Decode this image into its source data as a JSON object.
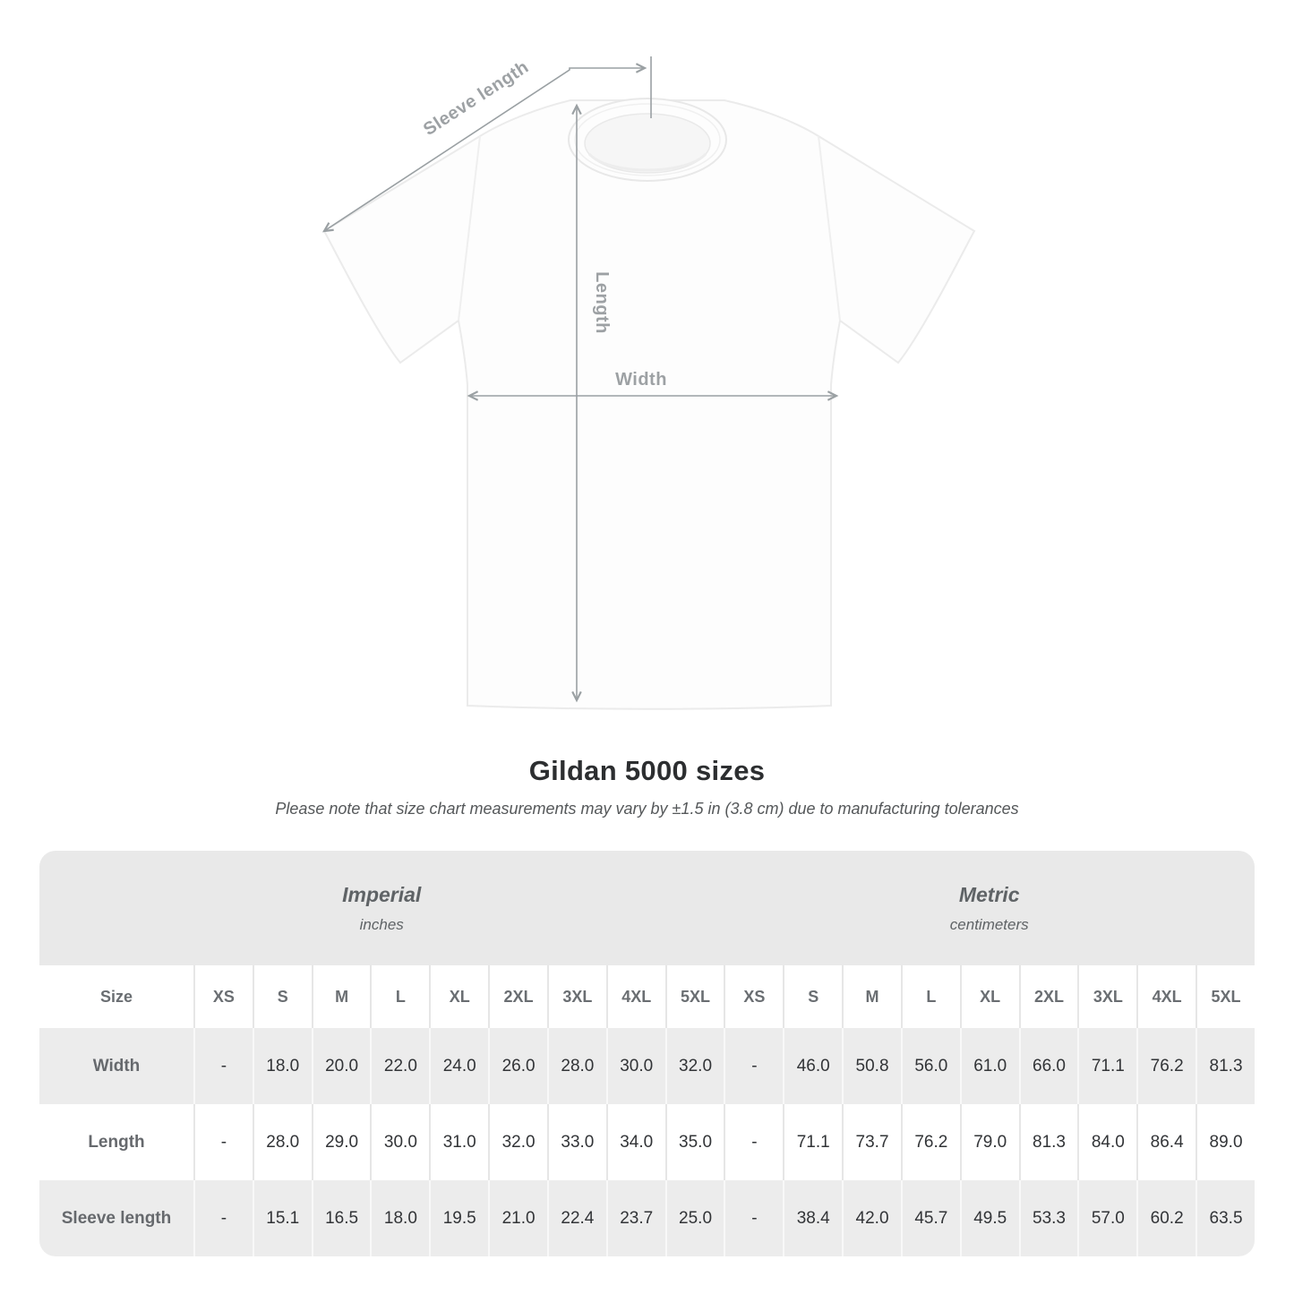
{
  "diagram": {
    "sleeve_length_label": "Sleeve length",
    "length_label": "Length",
    "width_label": "Width"
  },
  "title": "Gildan 5000 sizes",
  "note": "Please note that size chart measurements may vary by ±1.5 in (3.8 cm) due to manufacturing tolerances",
  "table": {
    "size_header": "Size",
    "unit_groups": [
      {
        "label": "Imperial",
        "sublabel": "inches"
      },
      {
        "label": "Metric",
        "sublabel": "centimeters"
      }
    ],
    "sizes": [
      "XS",
      "S",
      "M",
      "L",
      "XL",
      "2XL",
      "3XL",
      "4XL",
      "5XL"
    ],
    "rows": [
      {
        "label": "Width",
        "imperial": [
          "-",
          "18.0",
          "20.0",
          "22.0",
          "24.0",
          "26.0",
          "28.0",
          "30.0",
          "32.0"
        ],
        "metric": [
          "-",
          "46.0",
          "50.8",
          "56.0",
          "61.0",
          "66.0",
          "71.1",
          "76.2",
          "81.3"
        ]
      },
      {
        "label": "Length",
        "imperial": [
          "-",
          "28.0",
          "29.0",
          "30.0",
          "31.0",
          "32.0",
          "33.0",
          "34.0",
          "35.0"
        ],
        "metric": [
          "-",
          "71.1",
          "73.7",
          "76.2",
          "79.0",
          "81.3",
          "84.0",
          "86.4",
          "89.0"
        ]
      },
      {
        "label": "Sleeve length",
        "imperial": [
          "-",
          "15.1",
          "16.5",
          "18.0",
          "19.5",
          "21.0",
          "22.4",
          "23.7",
          "25.0"
        ],
        "metric": [
          "-",
          "38.4",
          "42.0",
          "45.7",
          "49.5",
          "53.3",
          "57.0",
          "60.2",
          "63.5"
        ]
      }
    ]
  },
  "colors": {
    "header_band": "#e9e9e9",
    "row_gray": "#ececec",
    "row_white": "#ffffff",
    "header_text": "#5f6366",
    "data_text": "#323437",
    "measure_line": "#9aa0a3",
    "measure_label": "#9da1a4",
    "title_text": "#2c2e30"
  }
}
